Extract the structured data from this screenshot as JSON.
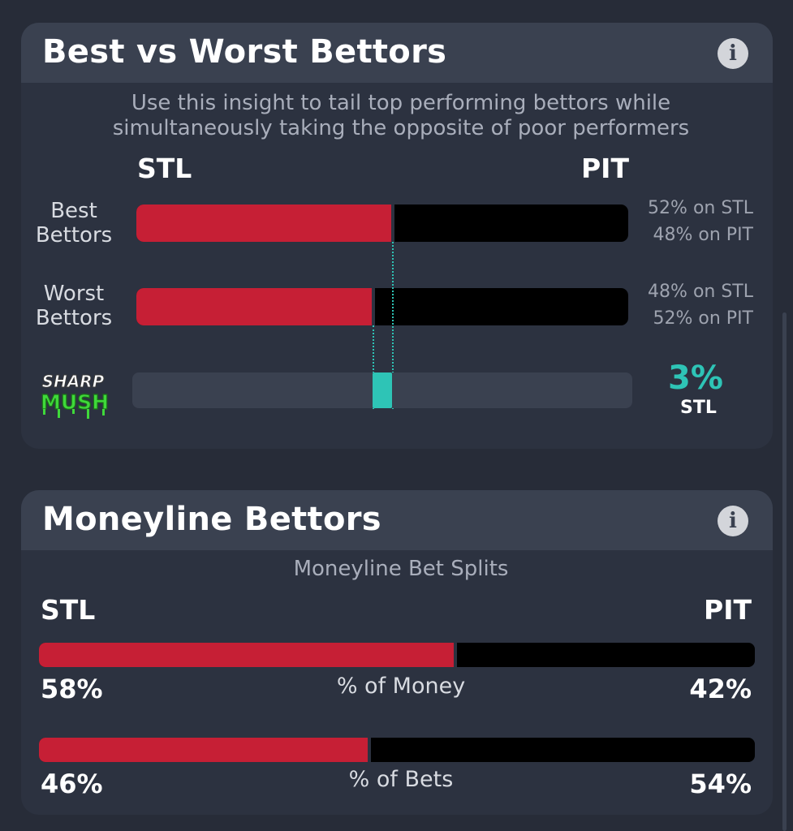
{
  "colors": {
    "background": "#272c38",
    "card": "#2c3240",
    "header": "#3a4150",
    "stl_red": "#c61f35",
    "pit_black": "#000000",
    "accent_teal": "#2ec4b6"
  },
  "best_vs_worst": {
    "title": "Best vs Worst Bettors",
    "info_icon": "info-icon",
    "description_line1": "Use this insight to tail top performing bettors while",
    "description_line2": "simultaneously taking the opposite of poor performers",
    "team_left": "STL",
    "team_right": "PIT",
    "best": {
      "label_line1": "Best",
      "label_line2": "Bettors",
      "stl_pct": 52,
      "split_line1": "52% on STL",
      "split_line2": "48% on PIT"
    },
    "worst": {
      "label_line1": "Worst",
      "label_line2": "Bettors",
      "stl_pct": 48,
      "split_line1": "48% on STL",
      "split_line2": "52% on PIT"
    },
    "edge": {
      "logo_line1": "SHARP",
      "logo_line2": "MUSH",
      "value": "3%",
      "team": "STL",
      "stl_edge_pct": 3
    }
  },
  "moneyline": {
    "title": "Moneyline Bettors",
    "info_icon": "info-icon",
    "subtitle": "Moneyline Bet Splits",
    "team_left": "STL",
    "team_right": "PIT",
    "money": {
      "label": "% of Money",
      "left": "58%",
      "right": "42%",
      "stl_pct": 58
    },
    "bets": {
      "label": "% of Bets",
      "left": "46%",
      "right": "54%",
      "stl_pct": 46
    }
  }
}
